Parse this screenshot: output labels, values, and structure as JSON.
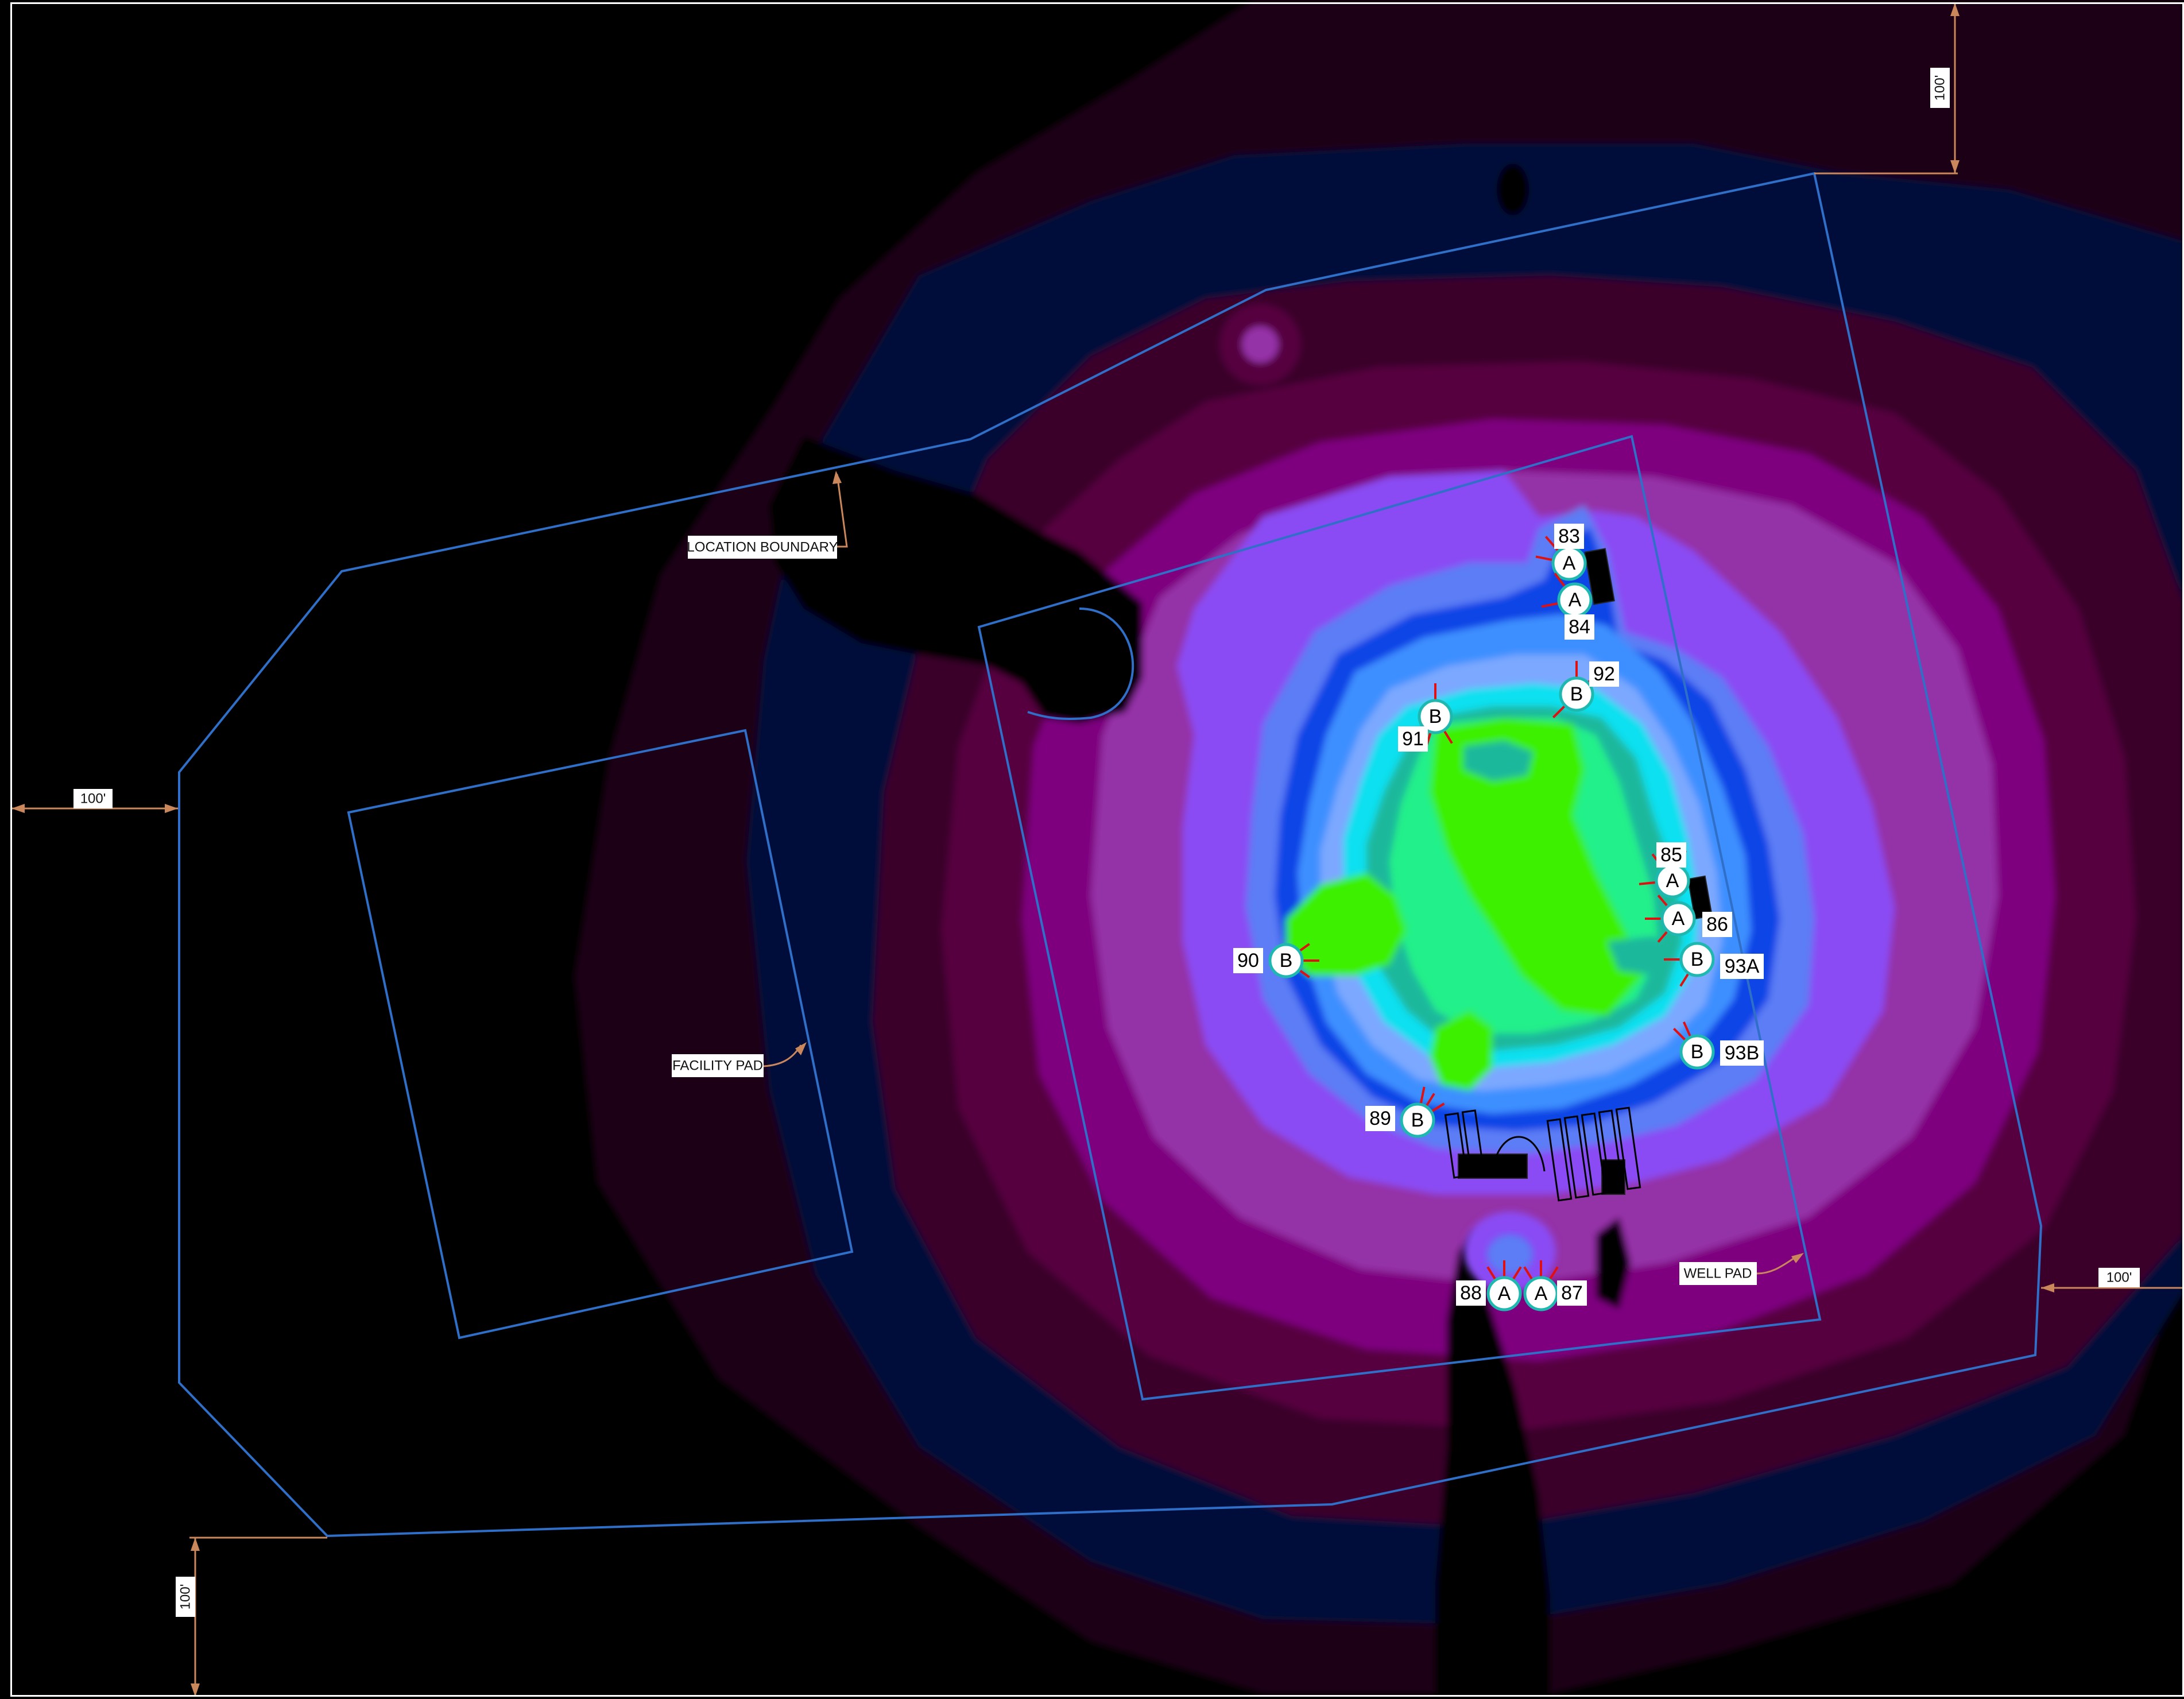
{
  "labels": {
    "location_boundary": "LOCATION BOUNDARY",
    "facility_pad": "FACILITY PAD",
    "well_pad": "WELL PAD"
  },
  "dimensions": {
    "top_right": "100'",
    "left": "100'",
    "right": "100'",
    "bottom_left": "100'"
  },
  "fixtures": [
    {
      "id": "83",
      "type": "A"
    },
    {
      "id": "84",
      "type": "A"
    },
    {
      "id": "92",
      "type": "B"
    },
    {
      "id": "91",
      "type": "B"
    },
    {
      "id": "85",
      "type": "A"
    },
    {
      "id": "86",
      "type": "A"
    },
    {
      "id": "93A",
      "type": "B"
    },
    {
      "id": "90",
      "type": "B"
    },
    {
      "id": "93B",
      "type": "B"
    },
    {
      "id": "89",
      "type": "B"
    },
    {
      "id": "88",
      "type": "A"
    },
    {
      "id": "87",
      "type": "A"
    }
  ],
  "colors": {
    "background": "#000000",
    "level_1": "#1d0017",
    "level_2": "#000b3a",
    "level_3": "#3b0029",
    "level_4": "#560040",
    "level_5": "#7e007f",
    "level_6": "#9430a7",
    "level_7": "#8a4cf4",
    "level_8": "#5c7df5",
    "level_9": "#0f45e6",
    "level_10": "#3d8fff",
    "level_11": "#7ba8ff",
    "level_12": "#10e0f0",
    "level_13": "#1fb89c",
    "level_14": "#22f08a",
    "level_15": "#3cf000",
    "boundary_line": "#2f6fc8",
    "dimension_line": "#c9875b",
    "fixture_ring": "#1fb8b0",
    "fixture_ray": "#e01010"
  },
  "icons": {
    "fixture": "light-fixture-circle-icon",
    "dimension_arrow": "arrowhead-icon",
    "leader_arrow": "leader-arrow-icon"
  }
}
